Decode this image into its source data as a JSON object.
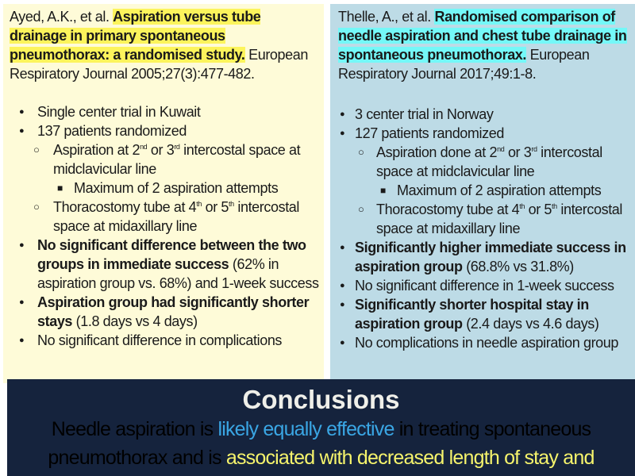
{
  "left": {
    "authors": "Ayed, A.K., et al. ",
    "title": "Aspiration versus tube drainage in primary spontaneous pneumothorax: a randomised study.",
    "journal": " European Respiratory Journal 2005;27(3):477-482.",
    "items": [
      {
        "level": 1,
        "parts": [
          {
            "t": "Single center trial in Kuwait"
          }
        ]
      },
      {
        "level": 1,
        "parts": [
          {
            "t": "137 patients randomized"
          }
        ]
      },
      {
        "level": 2,
        "parts": [
          {
            "t": "Aspiration at 2"
          },
          {
            "t": "nd",
            "sup": true
          },
          {
            "t": " or 3"
          },
          {
            "t": "rd",
            "sup": true
          },
          {
            "t": " intercostal space at midclavicular line"
          }
        ]
      },
      {
        "level": 3,
        "parts": [
          {
            "t": "Maximum of 2 aspiration attempts"
          }
        ]
      },
      {
        "level": 2,
        "parts": [
          {
            "t": "Thoracostomy tube at 4"
          },
          {
            "t": "th",
            "sup": true
          },
          {
            "t": " or 5"
          },
          {
            "t": "th",
            "sup": true
          },
          {
            "t": " intercostal space at midaxillary line"
          }
        ]
      },
      {
        "level": 1,
        "parts": [
          {
            "t": "No significant difference between the two groups in immediate success",
            "b": true
          },
          {
            "t": " (62% in aspiration group vs. 68%) and 1-week success"
          }
        ]
      },
      {
        "level": 1,
        "parts": [
          {
            "t": "Aspiration group had significantly shorter stays",
            "b": true
          },
          {
            "t": " (1.8 days vs 4 days)"
          }
        ]
      },
      {
        "level": 1,
        "parts": [
          {
            "t": "No significant difference in complications"
          }
        ]
      }
    ]
  },
  "right": {
    "authors": "Thelle, A., et al. ",
    "title": "Randomised comparison of needle aspiration and chest tube drainage in spontaneous pneumothorax.",
    "journal": " European Respiratory Journal 2017;49:1-8.",
    "items": [
      {
        "level": 1,
        "parts": [
          {
            "t": "3 center trial in Norway"
          }
        ]
      },
      {
        "level": 1,
        "parts": [
          {
            "t": "127 patients randomized"
          }
        ]
      },
      {
        "level": 2,
        "parts": [
          {
            "t": "Aspiration done at 2"
          },
          {
            "t": "nd",
            "sup": true
          },
          {
            "t": " or 3"
          },
          {
            "t": "rd",
            "sup": true
          },
          {
            "t": " intercostal space at midclavicular line"
          }
        ]
      },
      {
        "level": 3,
        "parts": [
          {
            "t": "Maximum of 2 aspiration attempts"
          }
        ]
      },
      {
        "level": 2,
        "parts": [
          {
            "t": "Thoracostomy tube at 4"
          },
          {
            "t": "th",
            "sup": true
          },
          {
            "t": " or 5"
          },
          {
            "t": "th",
            "sup": true
          },
          {
            "t": " intercostal space at midaxillary line"
          }
        ]
      },
      {
        "level": 1,
        "parts": [
          {
            "t": "Significantly higher immediate success in aspiration group",
            "b": true
          },
          {
            "t": " (68.8% vs 31.8%)"
          }
        ]
      },
      {
        "level": 1,
        "parts": [
          {
            "t": "No significant difference in 1-week success"
          }
        ]
      },
      {
        "level": 1,
        "parts": [
          {
            "t": "Significantly shorter hospital stay in aspiration group",
            "b": true
          },
          {
            "t": " (2.4 days vs 4.6 days)"
          }
        ]
      },
      {
        "level": 1,
        "parts": [
          {
            "t": "No complications in needle aspiration group"
          }
        ]
      }
    ]
  },
  "conclusions": {
    "title": "Conclusions",
    "line1": {
      "a": "Needle aspiration is ",
      "b": "likely equally effective",
      "c": " in treating spontaneous"
    },
    "line2": {
      "a": "pneumothorax and is ",
      "b": "associated with decreased length of stay and"
    }
  },
  "colors": {
    "left_bg": "#fefbd8",
    "right_bg": "#bddbe6",
    "conclusions_bg": "#15233d",
    "highlight_yellow": "#fcf45c",
    "highlight_cyan": "#74f8f8",
    "accent_blue": "#3aa6e4",
    "accent_yellow": "#f6f46c"
  }
}
